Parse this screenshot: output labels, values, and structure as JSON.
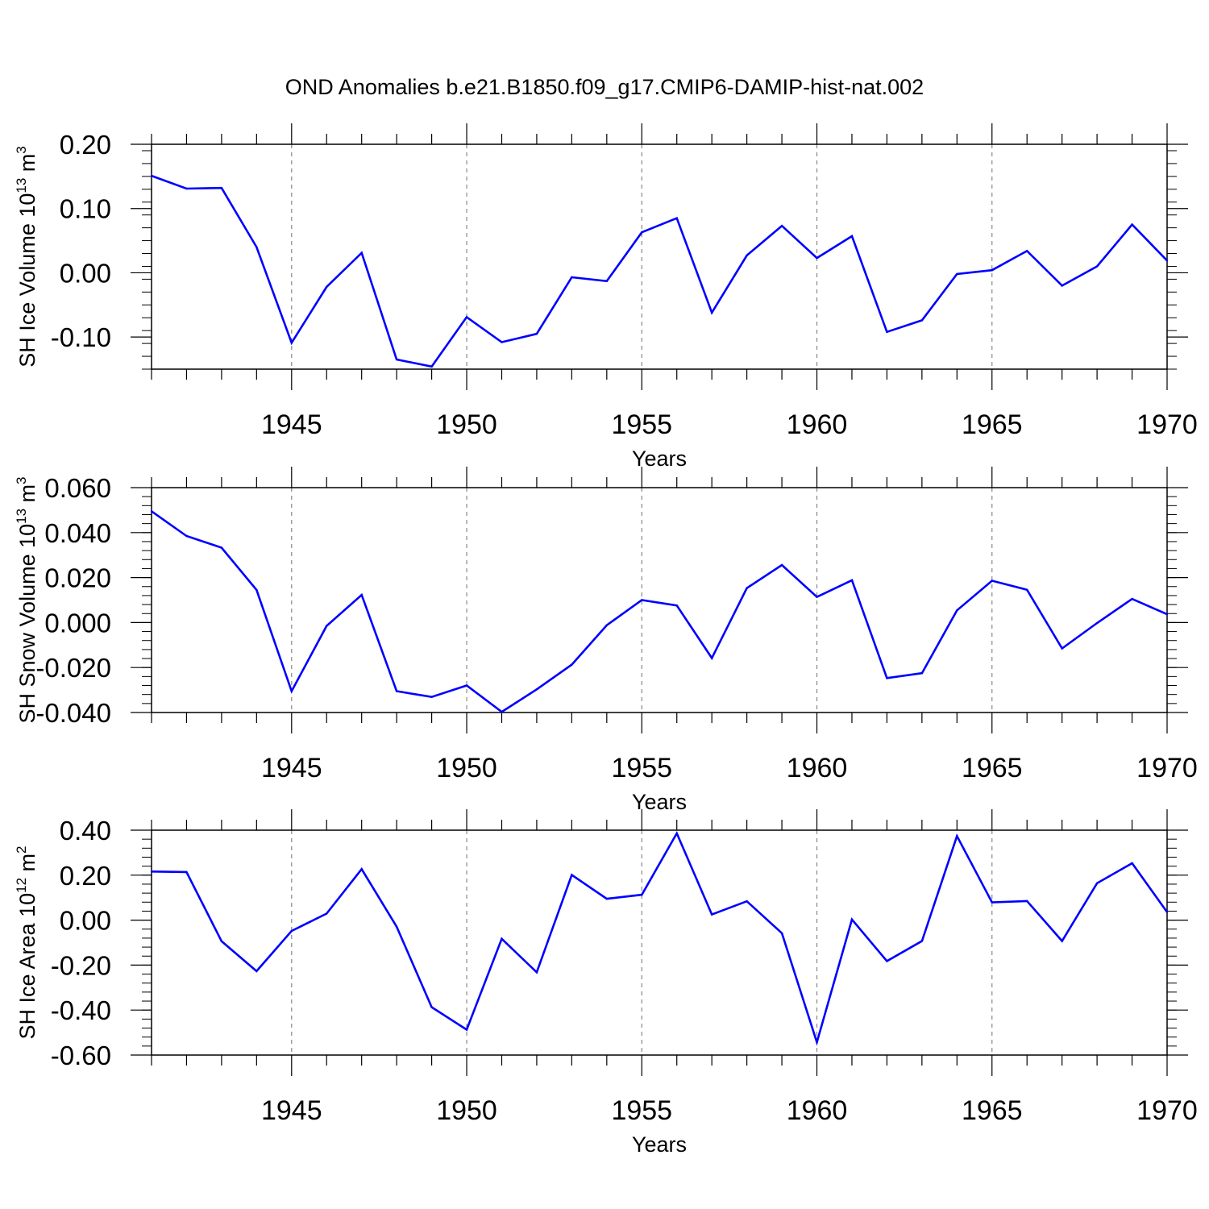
{
  "chart_data": {
    "title": "OND Anomalies b.e21.B1850.f09_g17.CMIP6-DAMIP-hist-nat.002",
    "line_color": "#0000ff",
    "x": [
      1941,
      1942,
      1943,
      1944,
      1945,
      1946,
      1947,
      1948,
      1949,
      1950,
      1951,
      1952,
      1953,
      1954,
      1955,
      1956,
      1957,
      1958,
      1959,
      1960,
      1961,
      1962,
      1963,
      1964,
      1965,
      1966,
      1967,
      1968,
      1969,
      1970
    ],
    "xlim": [
      1941,
      1970
    ],
    "xticks": [
      1945,
      1950,
      1955,
      1960,
      1965,
      1970
    ],
    "xtick_labels": [
      "1945",
      "1950",
      "1955",
      "1960",
      "1965",
      "1970"
    ],
    "grid": "vertical dashed at major x ticks",
    "panels": [
      {
        "type": "line",
        "ylabel": "SH Ice Volume 10",
        "ylabel_exp": "13",
        "ylabel_unit": " m",
        "ylabel_unit_exp": "3",
        "xlabel": "Years",
        "ylim": [
          -0.15,
          0.2
        ],
        "yticks": [
          0.2,
          0.1,
          0.0,
          -0.1
        ],
        "ytick_labels": [
          "0.20",
          "0.10",
          "0.00",
          "-0.10"
        ],
        "values": [
          0.151,
          0.131,
          0.132,
          0.04,
          -0.109,
          -0.022,
          0.031,
          -0.135,
          -0.146,
          -0.069,
          -0.108,
          -0.095,
          -0.007,
          -0.013,
          0.063,
          0.085,
          -0.062,
          0.027,
          0.073,
          0.023,
          0.057,
          -0.092,
          -0.074,
          -0.002,
          0.004,
          0.034,
          -0.02,
          0.01,
          0.075,
          0.019
        ]
      },
      {
        "type": "line",
        "ylabel": "SH Snow Volume 10",
        "ylabel_exp": "13",
        "ylabel_unit": " m",
        "ylabel_unit_exp": "3",
        "xlabel": "Years",
        "ylim": [
          -0.04,
          0.06
        ],
        "yticks": [
          0.06,
          0.04,
          0.02,
          0.0,
          -0.02,
          -0.04
        ],
        "ytick_labels": [
          "0.060",
          "0.040",
          "0.020",
          "0.000",
          "-0.020",
          "-0.040"
        ],
        "values": [
          0.0495,
          0.0385,
          0.0333,
          0.0145,
          -0.0305,
          -0.0015,
          0.0123,
          -0.0305,
          -0.0331,
          -0.028,
          -0.0397,
          -0.0297,
          -0.0187,
          -0.0012,
          0.01,
          0.0076,
          -0.0158,
          0.0153,
          0.0256,
          0.0114,
          0.0188,
          -0.0247,
          -0.0225,
          0.0054,
          0.0186,
          0.0146,
          -0.0115,
          -0.0002,
          0.0105,
          0.0037
        ]
      },
      {
        "type": "line",
        "ylabel": "SH Ice Area 10",
        "ylabel_exp": "12",
        "ylabel_unit": " m",
        "ylabel_unit_exp": "2",
        "xlabel": "Years",
        "ylim": [
          -0.6,
          0.4
        ],
        "yticks": [
          0.4,
          0.2,
          0.0,
          -0.2,
          -0.4,
          -0.6
        ],
        "ytick_labels": [
          "0.40",
          "0.20",
          "0.00",
          "-0.20",
          "-0.40",
          "-0.60"
        ],
        "values": [
          0.216,
          0.214,
          -0.094,
          -0.227,
          -0.048,
          0.029,
          0.227,
          -0.029,
          -0.387,
          -0.487,
          -0.083,
          -0.232,
          0.201,
          0.095,
          0.113,
          0.386,
          0.025,
          0.084,
          -0.058,
          -0.543,
          0.003,
          -0.182,
          -0.093,
          0.374,
          0.079,
          0.085,
          -0.093,
          0.164,
          0.253,
          0.036
        ]
      }
    ]
  }
}
